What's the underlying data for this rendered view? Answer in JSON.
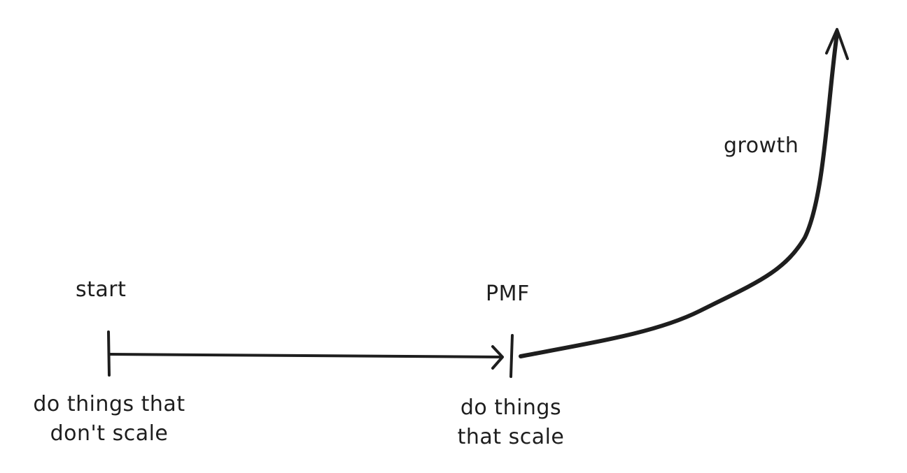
{
  "diagram": {
    "nodes": {
      "start": {
        "label": "start"
      },
      "pmf": {
        "label": "PMF"
      },
      "growth": {
        "label": "growth"
      }
    },
    "phases": {
      "before_pmf": {
        "lines": [
          "do things that",
          "don't scale"
        ]
      },
      "after_pmf": {
        "lines": [
          "do things",
          "that scale"
        ]
      }
    },
    "edges": [
      {
        "from": "start",
        "to": "pmf",
        "style": "straight-arrow"
      },
      {
        "from": "pmf",
        "to": "growth",
        "style": "curved-arrow"
      }
    ],
    "stroke_color": "#1e1e1e",
    "background": "#ffffff"
  }
}
